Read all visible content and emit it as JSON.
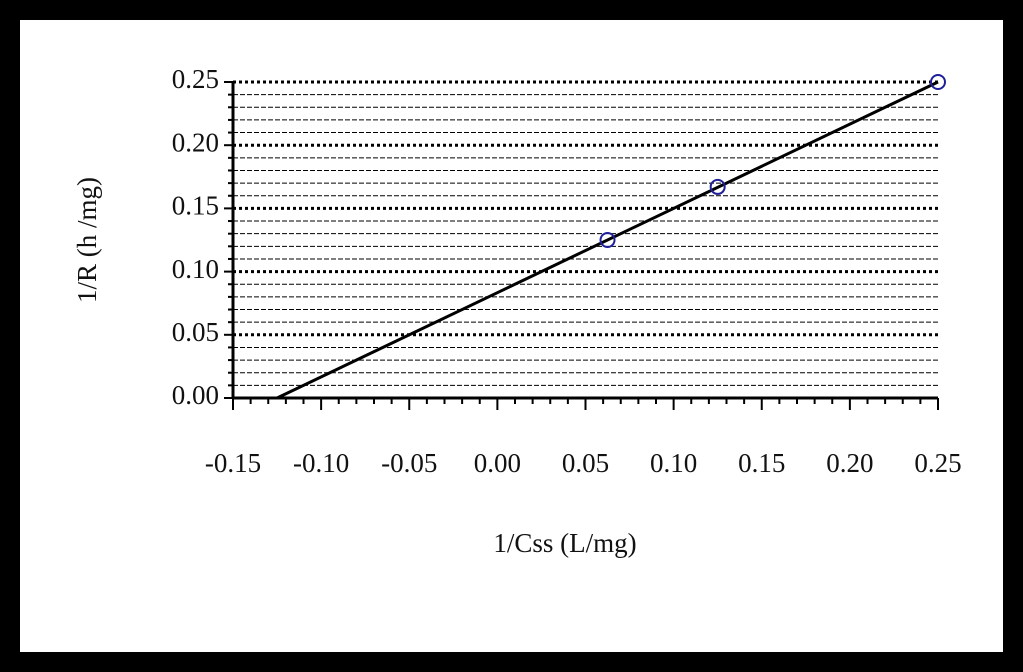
{
  "chart_data": {
    "type": "scatter",
    "x_label": "1/Css (L/mg)",
    "y_label": "1/R (h /mg)",
    "xlim": [
      -0.15,
      0.25
    ],
    "xticks": [
      -0.15,
      {
        "value": -0.1,
        "label": "-0.10"
      },
      -0.05,
      {
        "value": 0,
        "label": "0.00"
      },
      0.05,
      {
        "value": 0.1,
        "label": "0.10"
      },
      0.15,
      {
        "value": 0.2,
        "label": "0.20"
      },
      0.25
    ],
    "ylim": [
      0,
      0.25
    ],
    "yticks": [
      {
        "value": 0,
        "label": "0.00"
      },
      0.05,
      {
        "value": 0.1,
        "label": "0.10"
      },
      0.15,
      {
        "value": 0.2,
        "label": "0.20"
      },
      0.25
    ],
    "minor_per_major": 5,
    "grid": true,
    "series": [
      {
        "type": "scatter",
        "color": "#1f1f9a",
        "x": [
          0.0625,
          0.125,
          0.25
        ],
        "values": [
          0.125,
          0.167,
          0.25
        ]
      },
      {
        "type": "line",
        "color": "#000000",
        "x": [
          -0.125,
          0.25
        ],
        "values": [
          0,
          0.25
        ]
      }
    ]
  }
}
